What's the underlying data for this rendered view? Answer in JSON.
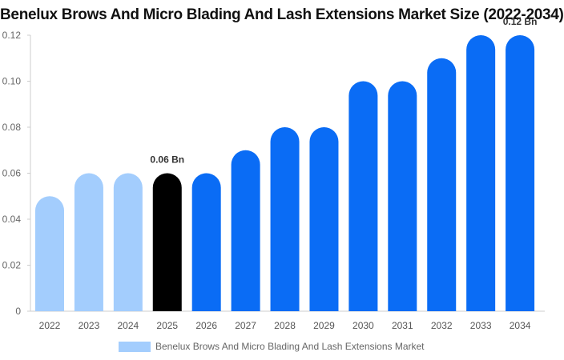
{
  "chart_data": {
    "type": "bar",
    "title": "Benelux Brows And Micro Blading And Lash Extensions Market Size (2022-2034)",
    "categories": [
      "2022",
      "2023",
      "2024",
      "2025",
      "2026",
      "2027",
      "2028",
      "2029",
      "2030",
      "2031",
      "2032",
      "2033",
      "2034"
    ],
    "series": [
      {
        "name": "Benelux Brows And Micro Blading And Lash Extensions Market",
        "values": [
          0.05,
          0.06,
          0.06,
          0.06,
          0.06,
          0.07,
          0.08,
          0.08,
          0.1,
          0.1,
          0.11,
          0.12,
          0.12
        ]
      }
    ],
    "ylim": [
      0,
      0.12
    ],
    "yticks": [
      "0",
      "0.02",
      "0.04",
      "0.06",
      "0.08",
      "0.10",
      "0.12"
    ],
    "data_labels": [
      {
        "category": "2025",
        "text": "0.06 Bn"
      },
      {
        "category": "2034",
        "text": "0.12 Bn"
      }
    ],
    "highlight_category": "2025",
    "colors": {
      "historical": "#a3cdfd",
      "highlight": "#000000",
      "forecast": "#0a6cf5"
    },
    "legend_position": "bottom-center",
    "grid": false
  }
}
